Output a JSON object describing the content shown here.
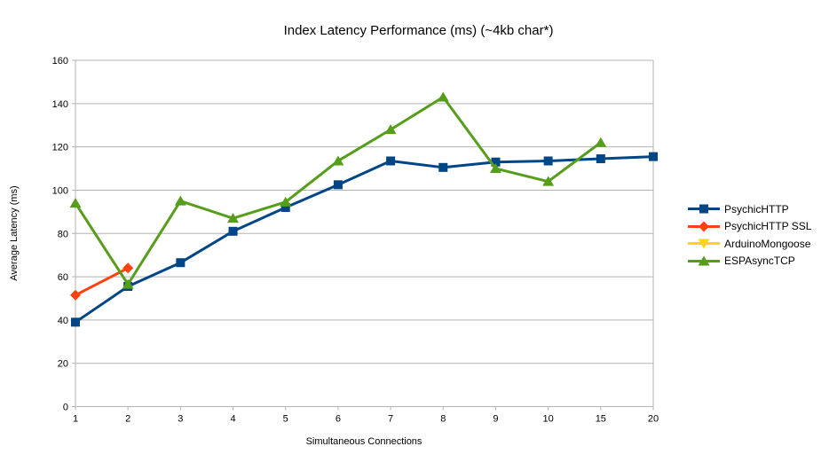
{
  "chart_data": {
    "type": "line",
    "title": "Index Latency Performance (ms) (~4kb char*)",
    "xlabel": "Simultaneous Connections",
    "ylabel": "Average Latency (ms)",
    "categories": [
      "1",
      "2",
      "3",
      "4",
      "5",
      "6",
      "7",
      "8",
      "9",
      "10",
      "15",
      "20"
    ],
    "ylim": [
      0,
      160
    ],
    "ytick_step": 20,
    "grid": "horizontal",
    "legend_position": "right",
    "series": [
      {
        "name": "PsychicHTTP",
        "color": "#004586",
        "marker": "square",
        "values": [
          39,
          55.5,
          66.5,
          81,
          92,
          102.5,
          113.5,
          110.5,
          113,
          113.5,
          114.5,
          115.5
        ]
      },
      {
        "name": "PsychicHTTP SSL",
        "color": "#FF420E",
        "marker": "diamond",
        "values": [
          51.5,
          64,
          null,
          null,
          null,
          null,
          null,
          null,
          null,
          null,
          null,
          null
        ]
      },
      {
        "name": "ArduinoMongoose",
        "color": "#FFD320",
        "marker": "triangle-down",
        "values": [
          null,
          null,
          null,
          null,
          null,
          null,
          null,
          null,
          null,
          null,
          null,
          null
        ]
      },
      {
        "name": "ESPAsyncTCP",
        "color": "#579D1C",
        "marker": "triangle-up",
        "values": [
          94,
          56.5,
          95,
          87,
          94.5,
          113.5,
          128,
          143,
          110,
          104,
          122,
          null
        ]
      }
    ],
    "grid_color": "#b3b3b3",
    "axis_color": "#b3b3b3",
    "text_color": "#000000"
  }
}
